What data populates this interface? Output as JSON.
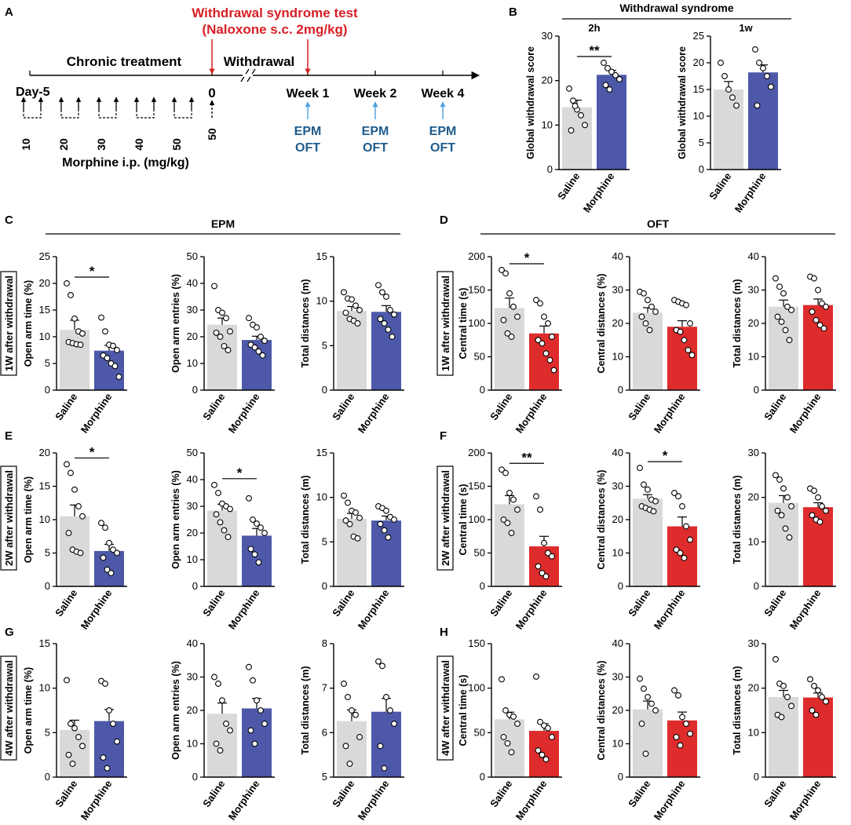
{
  "colors": {
    "saline": "#d9d9d9",
    "morphine_blue": "#4d59a8",
    "morphine_red": "#de2c2c",
    "red_text": "#d81f26",
    "blue_text": "#1f5c8b",
    "arrow_blue": "#4aa3df"
  },
  "panel_a": {
    "letter": "A",
    "test_title": "Withdrawal syndrome test",
    "test_subtitle": "(Naloxone s.c. 2mg/kg)",
    "chronic": "Chronic treatment",
    "withdrawal": "Withdrawal",
    "day_label": "Day-5",
    "day0": "0",
    "weeks": [
      "Week 1",
      "Week 2",
      "Week 4"
    ],
    "tests": [
      "EPM",
      "OFT"
    ],
    "doses": [
      "10",
      "20",
      "30",
      "40",
      "50",
      "50"
    ],
    "morphine_label": "Morphine i.p. (mg/kg)"
  },
  "panel_b": {
    "letter": "B",
    "title": "Withdrawal syndrome"
  },
  "section_labels": {
    "epm": "EPM",
    "oft": "OFT"
  },
  "row_labels": {
    "1W": "1W after withdrawal",
    "2W": "2W after withdrawal",
    "4W": "4W after withdrawal"
  },
  "panel_letters": {
    "C": "C",
    "D": "D",
    "E": "E",
    "F": "F",
    "G": "G",
    "H": "H"
  },
  "chart_data": [
    {
      "panel": "B",
      "type": "bar",
      "title": "2h",
      "ylabel": "Global withdrawal score",
      "categories": [
        "Saline",
        "Morphine"
      ],
      "values": [
        14.0,
        21.3
      ],
      "errors": [
        1.6,
        1.0
      ],
      "ylim": [
        0,
        30
      ],
      "yticks": [
        0,
        10,
        20,
        30
      ],
      "significance": "**",
      "points": [
        [
          18.2,
          15.5,
          13.5,
          12.2,
          10.0,
          8.8,
          14.3
        ],
        [
          24.0,
          22.8,
          22.0,
          21.2,
          20.3,
          19.0,
          18.0
        ]
      ]
    },
    {
      "panel": "B",
      "type": "bar",
      "title": "1w",
      "ylabel": "Global withdrawal score",
      "categories": [
        "Saline",
        "Morphine"
      ],
      "values": [
        15.0,
        18.2
      ],
      "errors": [
        1.5,
        1.4
      ],
      "ylim": [
        0,
        25
      ],
      "yticks": [
        0,
        5,
        10,
        15,
        20,
        25
      ],
      "significance": "",
      "points": [
        [
          20.0,
          17.5,
          15.0,
          13.5,
          12.0
        ],
        [
          22.5,
          20.0,
          19.0,
          17.5,
          15.5,
          12.0
        ]
      ]
    },
    {
      "panel": "C",
      "type": "bar",
      "title": "",
      "ylabel": "Open arm time (%)",
      "categories": [
        "Saline",
        "Morphine"
      ],
      "values": [
        11.3,
        7.4
      ],
      "errors": [
        1.8,
        1.0
      ],
      "ylim": [
        0,
        25
      ],
      "yticks": [
        0,
        5,
        10,
        15,
        20,
        25
      ],
      "significance": "*",
      "points": [
        [
          20.0,
          17.8,
          13.4,
          11.0,
          10.6,
          9.0,
          8.8,
          8.6,
          8.5
        ],
        [
          13.6,
          11.0,
          8.5,
          8.3,
          7.5,
          6.5,
          6.0,
          5.0,
          4.5,
          2.5
        ]
      ]
    },
    {
      "panel": "C",
      "type": "bar",
      "title": "",
      "ylabel": "Open arm entries (%)",
      "categories": [
        "Saline",
        "Morphine"
      ],
      "values": [
        24.5,
        18.8
      ],
      "errors": [
        2.5,
        1.4
      ],
      "ylim": [
        0,
        50
      ],
      "yticks": [
        0,
        10,
        20,
        30,
        40,
        50
      ],
      "significance": "",
      "points": [
        [
          39.0,
          30.0,
          29.0,
          27.0,
          22.0,
          21.5,
          20.0,
          16.5,
          15.0
        ],
        [
          27.0,
          24.5,
          23.5,
          20.0,
          18.5,
          17.0,
          16.0,
          14.5,
          13.0
        ]
      ]
    },
    {
      "panel": "C",
      "type": "bar",
      "title": "",
      "ylabel": "Total distances (m)",
      "categories": [
        "Saline",
        "Morphine"
      ],
      "values": [
        8.9,
        8.8
      ],
      "errors": [
        0.5,
        0.7
      ],
      "ylim": [
        0,
        15
      ],
      "yticks": [
        0,
        5,
        10,
        15
      ],
      "significance": "",
      "points": [
        [
          11.0,
          10.3,
          10.2,
          9.5,
          9.0,
          8.7,
          8.0,
          7.8,
          7.5
        ],
        [
          11.8,
          11.0,
          10.5,
          9.0,
          8.5,
          8.0,
          7.5,
          6.8,
          6.0
        ]
      ]
    },
    {
      "panel": "D",
      "type": "bar",
      "title": "",
      "ylabel": "Central time (s)",
      "categories": [
        "Saline",
        "Morphine"
      ],
      "values": [
        123,
        85
      ],
      "errors": [
        15,
        11
      ],
      "ylim": [
        0,
        200
      ],
      "yticks": [
        0,
        50,
        100,
        150,
        200
      ],
      "significance": "*",
      "points": [
        [
          180,
          175,
          145,
          125,
          110,
          105,
          85,
          80
        ],
        [
          135,
          130,
          110,
          100,
          80,
          75,
          70,
          55,
          45,
          30
        ]
      ]
    },
    {
      "panel": "D",
      "type": "bar",
      "title": "",
      "ylabel": "Central distances (%)",
      "categories": [
        "Saline",
        "Morphine"
      ],
      "values": [
        23.2,
        19.0
      ],
      "errors": [
        1.5,
        1.8
      ],
      "ylim": [
        0,
        40
      ],
      "yticks": [
        0,
        10,
        20,
        30,
        40
      ],
      "significance": "",
      "points": [
        [
          29.5,
          29.0,
          27.0,
          25.0,
          23.5,
          22.0,
          20.0,
          18.0
        ],
        [
          27.0,
          26.5,
          26.0,
          25.5,
          20.0,
          18.0,
          17.5,
          15.0,
          12.0,
          10.5
        ]
      ]
    },
    {
      "panel": "D",
      "type": "bar",
      "title": "",
      "ylabel": "Total distances (m)",
      "categories": [
        "Saline",
        "Morphine"
      ],
      "values": [
        25.0,
        25.5
      ],
      "errors": [
        2.0,
        1.8
      ],
      "ylim": [
        0,
        40
      ],
      "yticks": [
        0,
        10,
        20,
        30,
        40
      ],
      "significance": "",
      "points": [
        [
          33.5,
          31.0,
          29.0,
          25.0,
          24.0,
          22.0,
          20.5,
          18.0,
          15.0
        ],
        [
          34.0,
          33.5,
          30.0,
          26.0,
          25.0,
          23.5,
          21.0,
          19.5,
          18.5
        ]
      ]
    },
    {
      "panel": "E",
      "type": "bar",
      "title": "",
      "ylabel": "Open arm time (%)",
      "categories": [
        "Saline",
        "Morphine"
      ],
      "values": [
        10.5,
        5.3
      ],
      "errors": [
        1.7,
        1.0
      ],
      "ylim": [
        0,
        20
      ],
      "yticks": [
        0,
        5,
        10,
        15,
        20
      ],
      "significance": "*",
      "points": [
        [
          18.3,
          17.0,
          14.5,
          12.0,
          10.5,
          8.0,
          5.5,
          5.2,
          5.0
        ],
        [
          9.5,
          8.8,
          6.5,
          5.5,
          5.0,
          4.3,
          2.5,
          2.0
        ]
      ]
    },
    {
      "panel": "E",
      "type": "bar",
      "title": "",
      "ylabel": "Open arm entries (%)",
      "categories": [
        "Saline",
        "Morphine"
      ],
      "values": [
        28.4,
        19.0
      ],
      "errors": [
        2.4,
        2.7
      ],
      "ylim": [
        0,
        50
      ],
      "yticks": [
        0,
        10,
        20,
        30,
        40,
        50
      ],
      "significance": "*",
      "points": [
        [
          38.0,
          35.0,
          31.0,
          30.0,
          29.0,
          27.0,
          24.0,
          21.0,
          18.5
        ],
        [
          33.0,
          25.0,
          23.5,
          22.0,
          20.0,
          14.0,
          12.0,
          9.0
        ]
      ]
    },
    {
      "panel": "E",
      "type": "bar",
      "title": "",
      "ylabel": "Total distances (m)",
      "categories": [
        "Saline",
        "Morphine"
      ],
      "values": [
        7.6,
        7.4
      ],
      "errors": [
        0.6,
        0.5
      ],
      "ylim": [
        0,
        15
      ],
      "yticks": [
        0,
        5,
        10,
        15
      ],
      "significance": "",
      "points": [
        [
          10.2,
          9.4,
          8.5,
          8.3,
          7.7,
          7.4,
          7.0,
          5.6,
          5.4
        ],
        [
          9.0,
          8.8,
          8.5,
          7.8,
          7.5,
          7.0,
          6.3,
          5.5
        ]
      ]
    },
    {
      "panel": "F",
      "type": "bar",
      "title": "",
      "ylabel": "Central time (s)",
      "categories": [
        "Saline",
        "Morphine"
      ],
      "values": [
        123,
        60
      ],
      "errors": [
        13,
        15
      ],
      "ylim": [
        0,
        200
      ],
      "yticks": [
        0,
        50,
        100,
        150,
        200
      ],
      "significance": "**",
      "points": [
        [
          175,
          170,
          140,
          130,
          115,
          100,
          95,
          80
        ],
        [
          135,
          115,
          65,
          50,
          45,
          30,
          20,
          15
        ]
      ]
    },
    {
      "panel": "F",
      "type": "bar",
      "title": "",
      "ylabel": "Central distances (%)",
      "categories": [
        "Saline",
        "Morphine"
      ],
      "values": [
        26.3,
        18.0
      ],
      "errors": [
        1.2,
        2.8
      ],
      "ylim": [
        0,
        40
      ],
      "yticks": [
        0,
        10,
        20,
        30,
        40
      ],
      "significance": "*",
      "points": [
        [
          35.5,
          30.5,
          29.0,
          26.0,
          25.5,
          24.0,
          23.5,
          23.0,
          22.5
        ],
        [
          28.0,
          27.0,
          24.0,
          18.0,
          14.0,
          11.0,
          10.0,
          8.5
        ]
      ]
    },
    {
      "panel": "F",
      "type": "bar",
      "title": "",
      "ylabel": "Total distances (m)",
      "categories": [
        "Saline",
        "Morphine"
      ],
      "values": [
        18.8,
        17.8
      ],
      "errors": [
        1.6,
        1.0
      ],
      "ylim": [
        0,
        30
      ],
      "yticks": [
        0,
        10,
        20,
        30
      ],
      "significance": "",
      "points": [
        [
          25.0,
          24.0,
          22.0,
          20.0,
          18.0,
          17.0,
          16.0,
          13.0,
          11.0
        ],
        [
          22.0,
          21.5,
          20.0,
          18.0,
          17.0,
          16.0,
          15.0,
          14.5
        ]
      ]
    },
    {
      "panel": "G",
      "type": "bar",
      "title": "",
      "ylabel": "Open arm time (%)",
      "categories": [
        "Saline",
        "Morphine"
      ],
      "values": [
        5.3,
        6.3
      ],
      "errors": [
        1.1,
        1.3
      ],
      "ylim": [
        0,
        15
      ],
      "yticks": [
        0,
        5,
        10,
        15
      ],
      "significance": "",
      "points": [
        [
          10.9,
          6.0,
          5.5,
          4.5,
          3.5,
          2.5,
          1.5
        ],
        [
          10.8,
          10.5,
          7.5,
          6.0,
          4.0,
          2.2,
          1.0
        ]
      ]
    },
    {
      "panel": "G",
      "type": "bar",
      "title": "",
      "ylabel": "Open arm entries (%)",
      "categories": [
        "Saline",
        "Morphine"
      ],
      "values": [
        19.0,
        20.6
      ],
      "errors": [
        3.2,
        3.0
      ],
      "ylim": [
        0,
        40
      ],
      "yticks": [
        0,
        10,
        20,
        30,
        40
      ],
      "significance": "",
      "points": [
        [
          30.0,
          28.0,
          23.0,
          16.0,
          14.0,
          10.0,
          8.0
        ],
        [
          33.0,
          29.0,
          23.0,
          20.0,
          16.0,
          14.0,
          10.0
        ]
      ]
    },
    {
      "panel": "G",
      "type": "bar",
      "title": "",
      "ylabel": "Total distances (m)",
      "categories": [
        "Saline",
        "Morphine"
      ],
      "values": [
        6.26,
        6.47
      ],
      "errors": [
        0.25,
        0.3
      ],
      "ylim": [
        5,
        8
      ],
      "yticks": [
        5,
        6,
        7,
        8
      ],
      "significance": "",
      "points": [
        [
          7.1,
          6.8,
          6.5,
          6.4,
          5.9,
          5.7,
          5.3
        ],
        [
          7.6,
          7.5,
          6.8,
          6.5,
          6.2,
          5.7,
          5.2
        ]
      ]
    },
    {
      "panel": "H",
      "type": "bar",
      "title": "",
      "ylabel": "Central time (s)",
      "categories": [
        "Saline",
        "Morphine"
      ],
      "values": [
        65,
        52
      ],
      "errors": [
        8,
        8
      ],
      "ylim": [
        0,
        150
      ],
      "yticks": [
        0,
        50,
        100,
        150
      ],
      "significance": "",
      "points": [
        [
          110,
          75,
          70,
          68,
          60,
          45,
          38,
          28
        ],
        [
          113,
          62,
          58,
          55,
          45,
          30,
          25,
          20
        ]
      ]
    },
    {
      "panel": "H",
      "type": "bar",
      "title": "",
      "ylabel": "Central distances (%)",
      "categories": [
        "Saline",
        "Morphine"
      ],
      "values": [
        20.3,
        17.0
      ],
      "errors": [
        2.5,
        2.5
      ],
      "ylim": [
        0,
        40
      ],
      "yticks": [
        0,
        10,
        20,
        30,
        40
      ],
      "significance": "",
      "points": [
        [
          29.5,
          26.5,
          24.0,
          22.0,
          20.0,
          16.0,
          7.0
        ],
        [
          26.0,
          24.5,
          18.0,
          16.0,
          13.0,
          12.0,
          9.5
        ]
      ]
    },
    {
      "panel": "H",
      "type": "bar",
      "title": "",
      "ylabel": "Total distances (m)",
      "categories": [
        "Saline",
        "Morphine"
      ],
      "values": [
        18.0,
        17.9
      ],
      "errors": [
        1.5,
        1.0
      ],
      "ylim": [
        0,
        30
      ],
      "yticks": [
        0,
        10,
        20,
        30
      ],
      "significance": "",
      "points": [
        [
          26.5,
          21.0,
          20.5,
          18.0,
          16.0,
          14.0,
          13.5
        ],
        [
          22.0,
          20.5,
          19.5,
          18.0,
          17.0,
          15.0,
          14.0
        ]
      ]
    }
  ]
}
